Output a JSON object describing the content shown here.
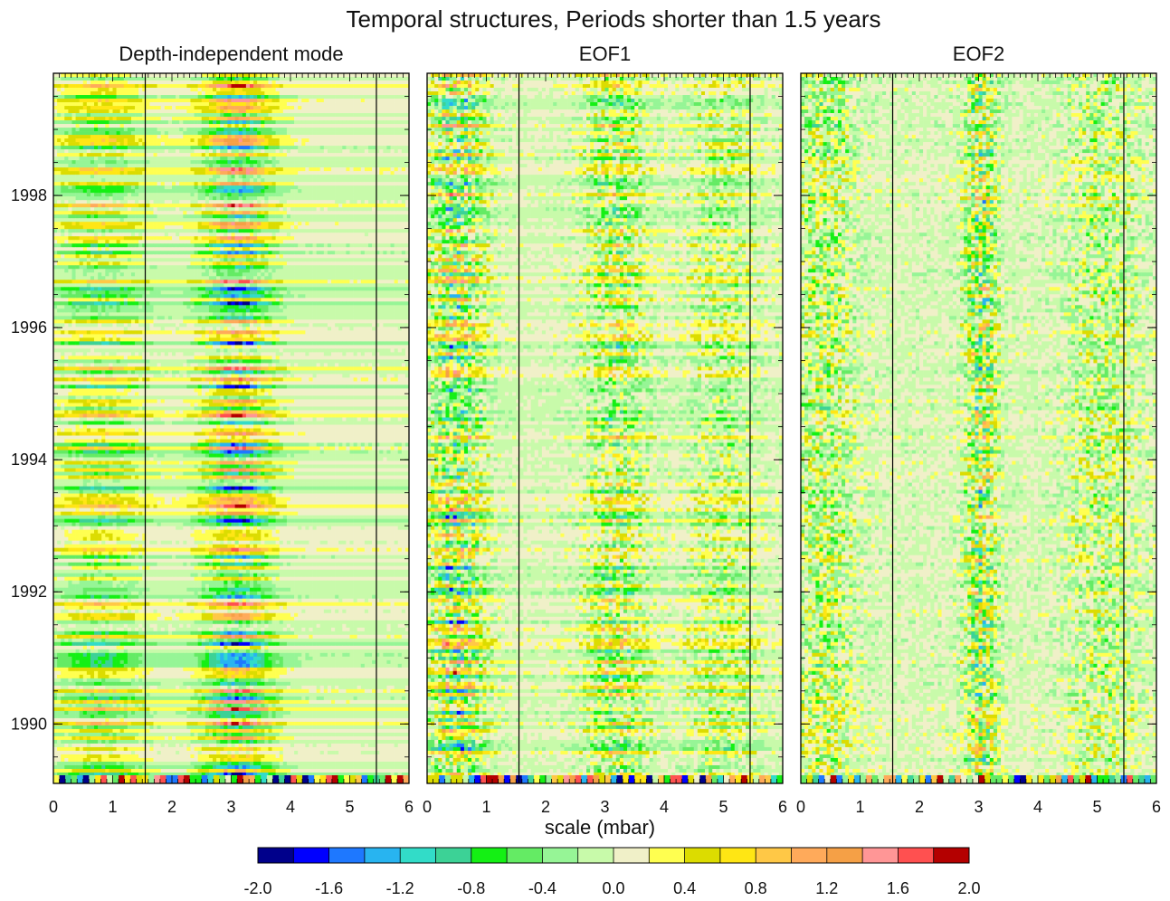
{
  "chart_data": {
    "type": "heatmap",
    "title": "Temporal structures, Periods shorter than 1.5 years",
    "xlabel": "scale (mbar)",
    "x_ticks": [
      0,
      1,
      2,
      3,
      4,
      5,
      6
    ],
    "xlim": [
      0,
      6
    ],
    "ylim": [
      1989.1,
      1999.85
    ],
    "y_ticks": [
      1990,
      1992,
      1994,
      1996,
      1998
    ],
    "vertical_reference_lines_x": [
      1.55,
      5.45
    ],
    "panels": [
      {
        "name": "Depth-independent mode",
        "row_coherence": 0.9,
        "features": [
          {
            "x": 3.1,
            "width": 0.55,
            "amplitude": 2.4
          },
          {
            "x": 0.8,
            "width": 0.7,
            "amplitude": 1.2
          }
        ]
      },
      {
        "name": "EOF1",
        "row_coherence": 0.6,
        "features": [
          {
            "x": 0.5,
            "width": 0.45,
            "amplitude": 2.2
          },
          {
            "x": 3.2,
            "width": 0.5,
            "amplitude": 1.4
          },
          {
            "x": 5.0,
            "width": 0.6,
            "amplitude": 0.8
          }
        ]
      },
      {
        "name": "EOF2",
        "row_coherence": 0.35,
        "features": [
          {
            "x": 3.05,
            "width": 0.25,
            "amplitude": 1.8
          },
          {
            "x": 0.4,
            "width": 0.5,
            "amplitude": 0.9
          },
          {
            "x": 5.1,
            "width": 0.6,
            "amplitude": 0.7
          }
        ]
      }
    ],
    "colorbar": {
      "levels": [
        -2.0,
        -1.8,
        -1.6,
        -1.4,
        -1.2,
        -1.0,
        -0.8,
        -0.6,
        -0.4,
        -0.2,
        0.0,
        0.2,
        0.4,
        0.6,
        0.8,
        1.0,
        1.2,
        1.4,
        1.6,
        1.8,
        2.0
      ],
      "labels": [
        "-2.0",
        "-1.6",
        "-1.2",
        "-0.8",
        "-0.4",
        "0.0",
        "0.4",
        "0.8",
        "1.2",
        "1.6",
        "2.0"
      ],
      "colors": [
        "#00008b",
        "#0000ff",
        "#1e78ff",
        "#28b4f0",
        "#32dcc8",
        "#3cd296",
        "#14f014",
        "#64eb64",
        "#96f596",
        "#c8faaa",
        "#f0f0c8",
        "#ffff50",
        "#dcdc00",
        "#ffe614",
        "#ffc846",
        "#ffaa5a",
        "#f5a046",
        "#ff9696",
        "#ff5050",
        "#b40000"
      ]
    }
  }
}
